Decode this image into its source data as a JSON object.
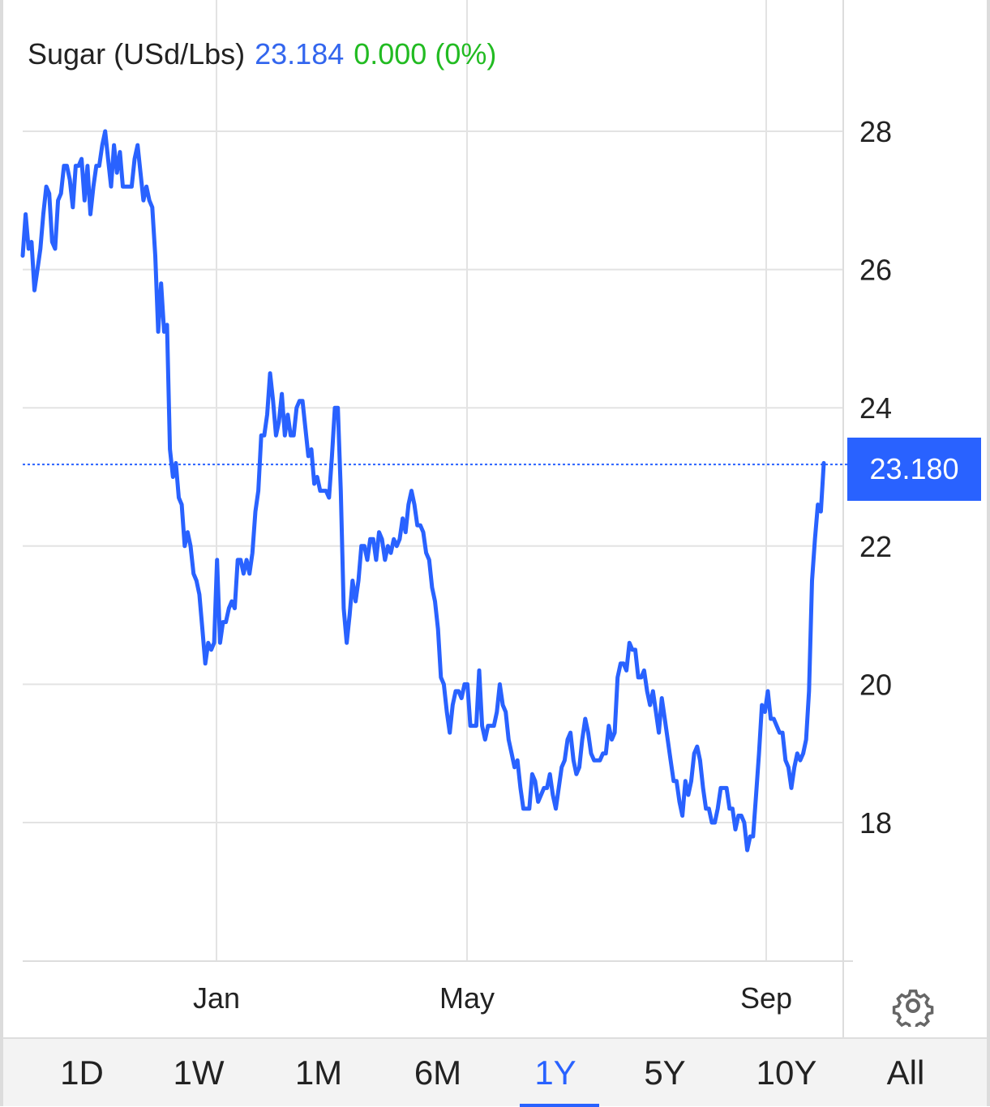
{
  "header": {
    "instrument": "Sugar (USd/Lbs)",
    "price": "23.184",
    "change": "0.000 (0%)"
  },
  "price_tag": "23.180",
  "colors": {
    "line": "#2962ff",
    "price_text": "#3366ee",
    "change_text": "#22bb22",
    "grid": "#e3e3e3",
    "tag_bg": "#2962ff"
  },
  "icons": {
    "settings": "gear-icon"
  },
  "ranges": [
    "1D",
    "1W",
    "1M",
    "6M",
    "1Y",
    "5Y",
    "10Y",
    "All"
  ],
  "active_range": "1Y",
  "chart_data": {
    "type": "line",
    "title": "Sugar (USd/Lbs)",
    "x_tick_labels": [
      "Jan",
      "May",
      "Sep"
    ],
    "y_tick_labels": [
      "28",
      "26",
      "24",
      "22",
      "20",
      "18"
    ],
    "ylim": [
      16.0,
      29.8
    ],
    "grid": true,
    "last_value": 23.18,
    "series": [
      {
        "values": [
          26.2,
          26.8,
          26.3,
          26.4,
          25.7,
          26.0,
          26.3,
          26.8,
          27.2,
          27.1,
          26.4,
          26.3,
          27.0,
          27.1,
          27.5,
          27.5,
          27.3,
          26.9,
          27.5,
          27.5,
          27.6,
          27.0,
          27.5,
          26.8,
          27.2,
          27.5,
          27.5,
          27.8,
          28.0,
          27.6,
          27.2,
          27.8,
          27.4,
          27.7,
          27.2,
          27.2,
          27.2,
          27.2,
          27.6,
          27.8,
          27.4,
          27.0,
          27.2,
          27.0,
          26.9,
          26.2,
          25.1,
          25.8,
          25.1,
          25.2,
          23.4,
          23.0,
          23.2,
          22.7,
          22.6,
          22.0,
          22.2,
          22.0,
          21.6,
          21.5,
          21.3,
          20.8,
          20.3,
          20.6,
          20.5,
          20.6,
          21.8,
          20.6,
          20.9,
          20.9,
          21.1,
          21.2,
          21.1,
          21.8,
          21.8,
          21.6,
          21.8,
          21.6,
          21.9,
          22.5,
          22.8,
          23.6,
          23.6,
          23.9,
          24.5,
          24.1,
          23.6,
          23.8,
          24.2,
          23.6,
          23.9,
          23.6,
          23.6,
          24.0,
          24.1,
          24.1,
          23.7,
          23.3,
          23.4,
          22.9,
          23.0,
          22.8,
          22.8,
          22.8,
          22.7,
          23.3,
          24.0,
          24.0,
          22.8,
          21.1,
          20.6,
          21.0,
          21.5,
          21.2,
          21.5,
          22.0,
          22.0,
          21.8,
          22.1,
          22.1,
          21.8,
          22.2,
          22.1,
          21.8,
          22.0,
          21.9,
          22.1,
          22.0,
          22.1,
          22.4,
          22.2,
          22.6,
          22.8,
          22.6,
          22.3,
          22.3,
          22.2,
          21.9,
          21.8,
          21.4,
          21.2,
          20.8,
          20.1,
          20.0,
          19.6,
          19.3,
          19.7,
          19.9,
          19.9,
          19.8,
          20.0,
          20.0,
          19.4,
          19.4,
          19.4,
          20.2,
          19.4,
          19.2,
          19.4,
          19.4,
          19.4,
          19.6,
          20.0,
          19.7,
          19.6,
          19.2,
          19.0,
          18.8,
          18.9,
          18.5,
          18.2,
          18.2,
          18.2,
          18.7,
          18.6,
          18.3,
          18.4,
          18.5,
          18.5,
          18.7,
          18.4,
          18.2,
          18.5,
          18.8,
          18.9,
          19.2,
          19.3,
          18.9,
          18.7,
          18.8,
          19.2,
          19.5,
          19.3,
          19.0,
          18.9,
          18.9,
          18.9,
          19.0,
          19.0,
          19.4,
          19.2,
          19.3,
          20.1,
          20.3,
          20.3,
          20.2,
          20.6,
          20.5,
          20.5,
          20.1,
          20.1,
          20.2,
          19.9,
          19.7,
          19.9,
          19.6,
          19.3,
          19.8,
          19.5,
          19.2,
          18.9,
          18.6,
          18.6,
          18.3,
          18.1,
          18.6,
          18.4,
          18.6,
          19.0,
          19.1,
          18.9,
          18.5,
          18.2,
          18.2,
          18.0,
          18.0,
          18.2,
          18.5,
          18.5,
          18.5,
          18.2,
          18.2,
          17.9,
          18.1,
          18.1,
          18.0,
          17.6,
          17.8,
          17.8,
          18.4,
          19.0,
          19.7,
          19.6,
          19.9,
          19.5,
          19.5,
          19.4,
          19.3,
          19.3,
          18.9,
          18.8,
          18.5,
          18.8,
          19.0,
          18.9,
          19.0,
          19.2,
          19.9,
          21.5,
          22.1,
          22.6,
          22.5,
          23.2
        ]
      }
    ]
  }
}
